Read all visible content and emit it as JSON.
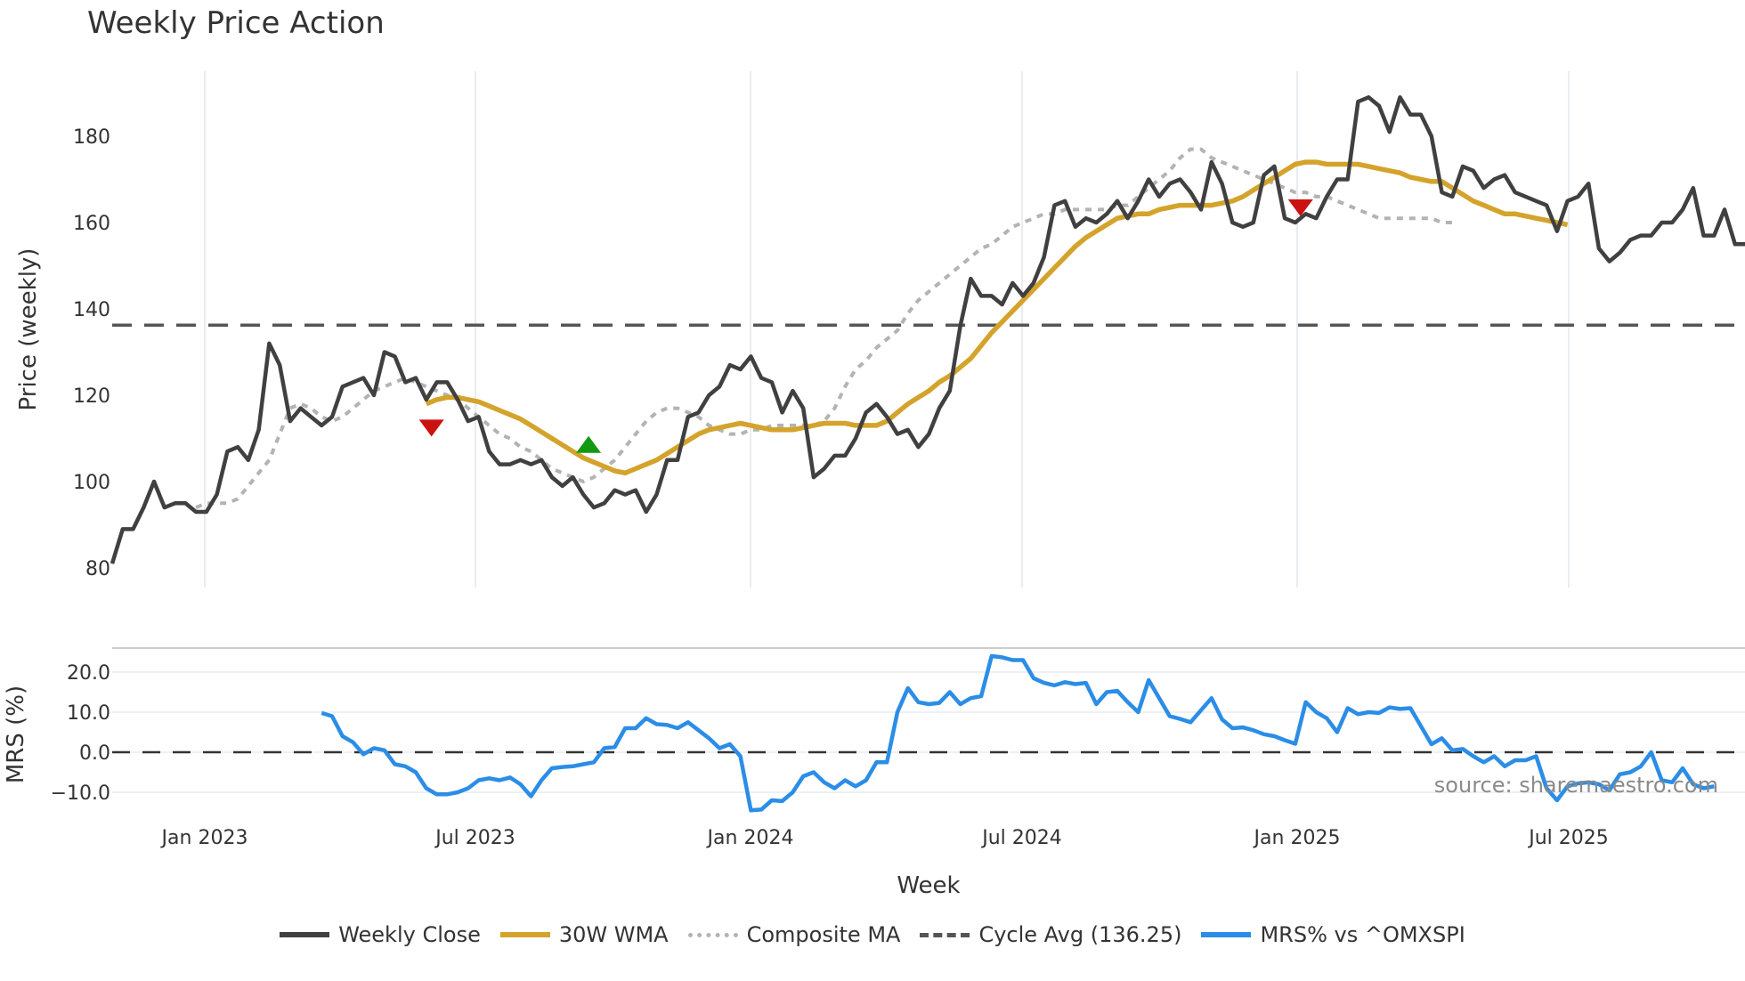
{
  "title": "Weekly Price Action",
  "source_text": "source: sharemaestro.com",
  "xlabel": "Week",
  "upper_ylabel": "Price (weekly)",
  "lower_ylabel": "MRS (%)",
  "legend": [
    {
      "label": "Weekly Close",
      "color": "#404040",
      "style": "solid"
    },
    {
      "label": "30W WMA",
      "color": "#d4a32b",
      "style": "solid"
    },
    {
      "label": "Composite MA",
      "color": "#b3b3b3",
      "style": "dotted"
    },
    {
      "label": "Cycle Avg (136.25)",
      "color": "#555555",
      "style": "dashed"
    },
    {
      "label": "MRS% vs ^OMXSPI",
      "color": "#2b8de6",
      "style": "solid"
    }
  ],
  "chart_data": [
    {
      "type": "line",
      "title": "Weekly Price Action",
      "xlabel": "Week",
      "ylabel": "Price (weekly)",
      "x_tick_labels": [
        "Jan 2023",
        "Jul 2023",
        "Jan 2024",
        "Jul 2024",
        "Jan 2025",
        "Jul 2025"
      ],
      "y_ticks": [
        80,
        100,
        120,
        140,
        160,
        180
      ],
      "ylim": [
        78,
        194
      ],
      "grid": {
        "x": true,
        "y": false
      },
      "legend_position": "bottom",
      "x_start_week_offset_before_jan2023": 9,
      "series": [
        {
          "name": "Weekly Close",
          "color": "#404040",
          "start_index": 0,
          "values": [
            81,
            89,
            89,
            94,
            100,
            94,
            95,
            95,
            93,
            93,
            97,
            107,
            108,
            105,
            112,
            132,
            127,
            114,
            117,
            115,
            113,
            115,
            122,
            123,
            124,
            120,
            130,
            129,
            123,
            124,
            119,
            123,
            123,
            119,
            114,
            115,
            107,
            104,
            104,
            105,
            104,
            105,
            101,
            99,
            101,
            97,
            94,
            95,
            98,
            97,
            98,
            93,
            97,
            105,
            105,
            115,
            116,
            120,
            122,
            127,
            126,
            129,
            124,
            123,
            116,
            121,
            117,
            101,
            103,
            106,
            106,
            110,
            116,
            118,
            115,
            111,
            112,
            108,
            111,
            117,
            121,
            136,
            147,
            143,
            143,
            141,
            146,
            143,
            146,
            152,
            164,
            165,
            159,
            161,
            160,
            162,
            165,
            161,
            165,
            170,
            166,
            169,
            170,
            167,
            163,
            174,
            169,
            160,
            159,
            160,
            171,
            173,
            161,
            160,
            162,
            161,
            166,
            170,
            170,
            188,
            189,
            187,
            181,
            189,
            185,
            185,
            180,
            167,
            166,
            173,
            172,
            168,
            170,
            171,
            167,
            166,
            165,
            164,
            158,
            165,
            166,
            169,
            154,
            151,
            153,
            156,
            157,
            157,
            160,
            160,
            163,
            168,
            157,
            157,
            163,
            155,
            155,
            158
          ]
        },
        {
          "name": "30W WMA",
          "color": "#d4a32b",
          "start_index": 30,
          "values": [
            118,
            119,
            119.5,
            119.5,
            119,
            118.5,
            117.5,
            116.5,
            115.5,
            114.5,
            113,
            111.5,
            110,
            108.5,
            107,
            105.5,
            104.5,
            103.5,
            102.5,
            102,
            103,
            104,
            105,
            106.5,
            108,
            109.5,
            111,
            112,
            112.5,
            113,
            113.5,
            113,
            112.5,
            112,
            112,
            112,
            112.5,
            113,
            113.5,
            113.5,
            113.5,
            113,
            113,
            113,
            114,
            116,
            118,
            119.5,
            121,
            123,
            124.5,
            126.5,
            128.5,
            131.5,
            134.5,
            137,
            139.5,
            142,
            144.5,
            147,
            149.5,
            152,
            154.5,
            156.5,
            158,
            159.5,
            161,
            161.5,
            162,
            162,
            163,
            163.5,
            164,
            164,
            164,
            164,
            164.5,
            165,
            166,
            167.5,
            169,
            170.5,
            172,
            173.5,
            174,
            174,
            173.5,
            173.5,
            173.5,
            173.5,
            173,
            172.5,
            172,
            171.5,
            170.5,
            170,
            169.5,
            169.5,
            168,
            166.5,
            165,
            164,
            163,
            162,
            162,
            161.5,
            161,
            160.5,
            160,
            159.5
          ]
        },
        {
          "name": "Composite MA",
          "color": "#b3b3b3",
          "start_index": 8,
          "values": [
            94,
            95,
            95,
            95,
            96,
            99,
            102,
            105,
            111,
            117,
            118,
            117,
            115,
            114,
            115,
            117,
            119,
            121,
            122,
            123,
            124,
            123,
            122,
            121,
            120,
            119,
            117,
            115,
            113,
            111,
            110,
            108,
            107,
            105,
            103,
            102,
            101,
            100,
            101,
            103,
            105,
            108,
            111,
            114,
            116,
            117,
            117,
            116,
            115,
            113,
            112,
            111,
            111,
            112,
            112,
            113,
            113,
            113,
            113,
            113,
            114,
            117,
            122,
            126,
            128,
            131,
            133,
            135,
            139,
            142,
            144,
            146,
            148,
            150,
            152,
            154,
            155,
            157,
            159,
            160,
            161,
            162,
            162,
            163,
            163,
            163,
            163,
            163,
            164,
            164,
            166,
            168,
            170,
            172,
            175,
            177,
            177,
            175,
            174,
            173,
            172,
            171,
            170,
            169,
            168,
            167,
            167,
            166,
            166,
            165,
            164,
            163,
            162,
            161,
            161,
            161,
            161,
            161,
            161,
            160,
            160
          ]
        },
        {
          "name": "Cycle Avg (136.25)",
          "color": "#555555",
          "constant": 136.25
        }
      ],
      "markers": [
        {
          "type": "sell",
          "shape": "triangle-down",
          "color": "#cc1111",
          "index": 30,
          "value": 112.5
        },
        {
          "type": "buy",
          "shape": "triangle-up",
          "color": "#119911",
          "index": 45,
          "value": 108.5
        },
        {
          "type": "sell",
          "shape": "triangle-down",
          "color": "#cc1111",
          "index": 113,
          "value": 163.5
        }
      ]
    },
    {
      "type": "line",
      "title": "",
      "xlabel": "Week",
      "ylabel": "MRS (%)",
      "y_ticks": [
        -10.0,
        0.0,
        10.0,
        20.0
      ],
      "y_tick_labels": [
        "−10.0",
        "0.0",
        "10.0",
        "20.0"
      ],
      "ylim": [
        -16,
        26
      ],
      "series": [
        {
          "name": "MRS% vs ^OMXSPI",
          "color": "#2b8de6",
          "start_index": 20,
          "values": [
            9.8,
            9,
            4,
            2.5,
            -0.5,
            1,
            0.5,
            -3,
            -3.5,
            -5,
            -9,
            -10.5,
            -10.5,
            -10,
            -9,
            -7,
            -6.5,
            -7,
            -6.3,
            -8,
            -11,
            -7,
            -4,
            -3.7,
            -3.5,
            -3,
            -2.5,
            1,
            1.3,
            6,
            6,
            8.5,
            7,
            6.8,
            6,
            7.5,
            5.5,
            3.5,
            1,
            2,
            -1,
            -14.5,
            -14.3,
            -12,
            -12.2,
            -10,
            -6,
            -5,
            -7.5,
            -9,
            -7,
            -8.5,
            -7,
            -2.5,
            -2.5,
            10,
            16,
            12.5,
            12,
            12.3,
            15,
            12,
            13.5,
            14,
            24,
            23.7,
            23,
            23,
            18.5,
            17.3,
            16.7,
            17.5,
            17,
            17.3,
            12,
            15,
            15.3,
            12.5,
            10,
            18,
            13.5,
            9,
            8.3,
            7.5,
            10.5,
            13.5,
            8.2,
            6,
            6.2,
            5.5,
            4.5,
            4,
            3,
            2.1,
            12.5,
            10,
            8.5,
            5,
            11,
            9.5,
            10,
            9.8,
            11.2,
            10.8,
            11,
            6.5,
            2,
            3.5,
            0.5,
            0.8,
            -1,
            -2.5,
            -1,
            -3.5,
            -2,
            -2,
            -1,
            -9,
            -12,
            -8.5,
            -7.8,
            -7.5,
            -8,
            -9.5,
            -5.5,
            -5,
            -3.5,
            0,
            -7,
            -7.5,
            -4,
            -8,
            -9,
            -8.5
          ]
        }
      ],
      "reference_line": 0.0
    }
  ]
}
